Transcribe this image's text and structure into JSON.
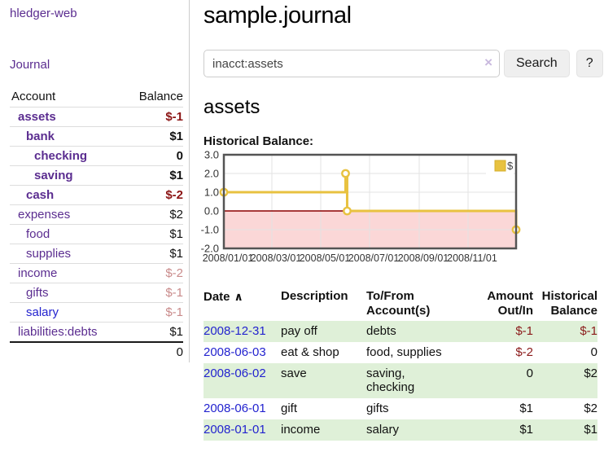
{
  "app": {
    "brand": "hledger-web"
  },
  "sidebar": {
    "journal_link": "Journal",
    "table": {
      "account_header": "Account",
      "balance_header": "Balance",
      "rows": [
        {
          "account": "assets",
          "indent": 1,
          "bold": true,
          "link_color": "purple",
          "balance": "$-1",
          "balance_style": "neg-strong"
        },
        {
          "account": "bank",
          "indent": 2,
          "bold": true,
          "link_color": "purple",
          "balance": "$1",
          "balance_style": "plain"
        },
        {
          "account": "checking",
          "indent": 3,
          "bold": true,
          "link_color": "purple",
          "balance": "0",
          "balance_style": "plain"
        },
        {
          "account": "saving",
          "indent": 3,
          "bold": true,
          "link_color": "purple",
          "balance": "$1",
          "balance_style": "plain"
        },
        {
          "account": "cash",
          "indent": 2,
          "bold": true,
          "link_color": "purple",
          "balance": "$-2",
          "balance_style": "neg-strong"
        },
        {
          "account": "expenses",
          "indent": 1,
          "bold": false,
          "link_color": "purple",
          "balance": "$2",
          "balance_style": "plain"
        },
        {
          "account": "food",
          "indent": 2,
          "bold": false,
          "link_color": "purple",
          "balance": "$1",
          "balance_style": "plain"
        },
        {
          "account": "supplies",
          "indent": 2,
          "bold": false,
          "link_color": "purple",
          "balance": "$1",
          "balance_style": "plain"
        },
        {
          "account": "income",
          "indent": 1,
          "bold": false,
          "link_color": "purple",
          "balance": "$-2",
          "balance_style": "neg-soft"
        },
        {
          "account": "gifts",
          "indent": 2,
          "bold": false,
          "link_color": "purple",
          "balance": "$-1",
          "balance_style": "neg-soft"
        },
        {
          "account": "salary",
          "indent": 2,
          "bold": false,
          "link_color": "blue",
          "balance": "$-1",
          "balance_style": "neg-soft"
        },
        {
          "account": "liabilities:debts",
          "indent": 1,
          "bold": false,
          "link_color": "purple",
          "balance": "$1",
          "balance_style": "plain"
        }
      ],
      "total": "0"
    }
  },
  "main": {
    "title": "sample.journal",
    "search": {
      "value": "inacct:assets",
      "clear_icon": "×",
      "search_button": "Search",
      "help_button": "?"
    },
    "account_heading": "assets",
    "chart_heading": "Historical Balance:"
  },
  "chart_data": {
    "type": "line",
    "step": true,
    "title": "Historical Balance",
    "series": [
      {
        "name": "$",
        "color": "#e8c240",
        "points": [
          [
            "2008-01-01",
            1
          ],
          [
            "2008-06-01",
            2
          ],
          [
            "2008-06-03",
            0
          ],
          [
            "2008-12-31",
            -1
          ]
        ]
      }
    ],
    "ylim": [
      -2,
      3
    ],
    "yticks": [
      "3.0",
      "2.0",
      "1.0",
      "0.0",
      "-1.0",
      "-2.0"
    ],
    "xticks": [
      "2008/01/01",
      "2008/03/01",
      "2008/05/01",
      "2008/07/01",
      "2008/09/01",
      "2008/11/01"
    ],
    "xrange": [
      "2008-01-01",
      "2008-12-31"
    ],
    "legend": {
      "label": "$",
      "position": "top-right"
    },
    "grid": true,
    "colors": {
      "line": "#e8c240",
      "marker_fill": "#ffffff",
      "negative_region": "#fbd7d7",
      "zero_line": "#8b0000",
      "border": "#545454",
      "gridline": "#e3e3e3"
    }
  },
  "transactions": {
    "headers": {
      "date": "Date",
      "sort_icon": "∧",
      "description": "Description",
      "account": [
        "To/From",
        "Account(s)"
      ],
      "amount": [
        "Amount",
        "Out/In"
      ],
      "balance": [
        "Historical",
        "Balance"
      ]
    },
    "rows": [
      {
        "date": "2008-12-31",
        "description": "pay off",
        "accounts": [
          "debts"
        ],
        "amount": "$-1",
        "amount_neg": true,
        "balance": "$-1",
        "balance_neg": true,
        "shaded": true
      },
      {
        "date": "2008-06-03",
        "description": "eat & shop",
        "accounts": [
          "food, supplies"
        ],
        "amount": "$-2",
        "amount_neg": true,
        "balance": "0",
        "balance_neg": false,
        "shaded": false
      },
      {
        "date": "2008-06-02",
        "description": "save",
        "accounts": [
          "saving,",
          "checking"
        ],
        "amount": "0",
        "amount_neg": false,
        "balance": "$2",
        "balance_neg": false,
        "shaded": true
      },
      {
        "date": "2008-06-01",
        "description": "gift",
        "accounts": [
          "gifts"
        ],
        "amount": "$1",
        "amount_neg": false,
        "balance": "$2",
        "balance_neg": false,
        "shaded": false
      },
      {
        "date": "2008-01-01",
        "description": "income",
        "accounts": [
          "salary"
        ],
        "amount": "$1",
        "amount_neg": false,
        "balance": "$1",
        "balance_neg": false,
        "shaded": true
      }
    ]
  },
  "colors": {
    "link_purple": "#5b2d90",
    "link_blue": "#2323cf",
    "negative_strong": "#8b1414",
    "negative_soft": "#c98b8b",
    "table_negative": "#8b1a1a",
    "shaded_row": "#dff0d8"
  }
}
